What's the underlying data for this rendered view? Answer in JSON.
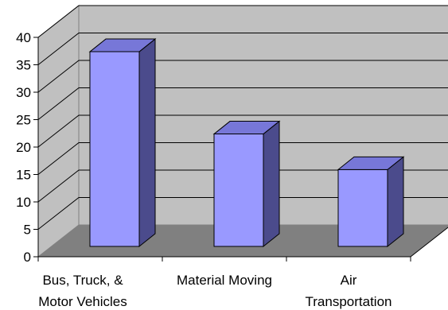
{
  "chart_data": {
    "type": "bar",
    "three_d": true,
    "categories": [
      [
        "Bus, Truck, &",
        "Motor Vehicles"
      ],
      [
        "Material Moving"
      ],
      [
        "Air",
        "Transportation"
      ]
    ],
    "values": [
      35.5,
      20.5,
      14
    ],
    "ylim": [
      0,
      40
    ],
    "yticks": [
      "0",
      "5",
      "10",
      "15",
      "20",
      "25",
      "30",
      "35",
      "40"
    ],
    "grid": true,
    "legend": "none",
    "colors": {
      "bar_front": "#9999ff",
      "bar_side": "#4b4b8c",
      "bar_top": "#7777d8",
      "back_wall": "#c0c0c0",
      "floor": "#808080",
      "grid": "#000000"
    }
  }
}
